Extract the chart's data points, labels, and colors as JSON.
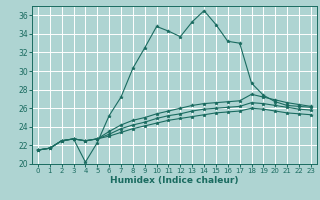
{
  "xlabel": "Humidex (Indice chaleur)",
  "background_color": "#aed4d2",
  "grid_color": "#ffffff",
  "line_color": "#1a6b60",
  "xlim": [
    -0.5,
    23.5
  ],
  "ylim": [
    20,
    37
  ],
  "xticks": [
    0,
    1,
    2,
    3,
    4,
    5,
    6,
    7,
    8,
    9,
    10,
    11,
    12,
    13,
    14,
    15,
    16,
    17,
    18,
    19,
    20,
    21,
    22,
    23
  ],
  "yticks": [
    20,
    22,
    24,
    26,
    28,
    30,
    32,
    34,
    36
  ],
  "series": [
    [
      21.5,
      21.7,
      22.5,
      22.7,
      20.2,
      22.3,
      25.2,
      27.2,
      30.3,
      32.5,
      34.8,
      34.3,
      33.7,
      35.3,
      36.5,
      35.0,
      33.2,
      33.0,
      28.7,
      27.4,
      26.7,
      26.3,
      26.2,
      26.1
    ],
    [
      21.5,
      21.7,
      22.5,
      22.7,
      22.5,
      22.7,
      23.5,
      24.2,
      24.7,
      25.0,
      25.4,
      25.7,
      26.0,
      26.3,
      26.5,
      26.6,
      26.7,
      26.8,
      27.5,
      27.2,
      26.9,
      26.6,
      26.4,
      26.2
    ],
    [
      21.5,
      21.7,
      22.5,
      22.7,
      22.5,
      22.7,
      23.2,
      23.8,
      24.2,
      24.5,
      24.9,
      25.2,
      25.4,
      25.7,
      25.9,
      26.0,
      26.1,
      26.2,
      26.6,
      26.5,
      26.3,
      26.1,
      25.9,
      25.8
    ],
    [
      21.5,
      21.7,
      22.5,
      22.7,
      22.5,
      22.7,
      23.0,
      23.4,
      23.8,
      24.1,
      24.4,
      24.7,
      24.9,
      25.1,
      25.3,
      25.5,
      25.6,
      25.7,
      26.0,
      25.9,
      25.7,
      25.5,
      25.4,
      25.3
    ]
  ]
}
